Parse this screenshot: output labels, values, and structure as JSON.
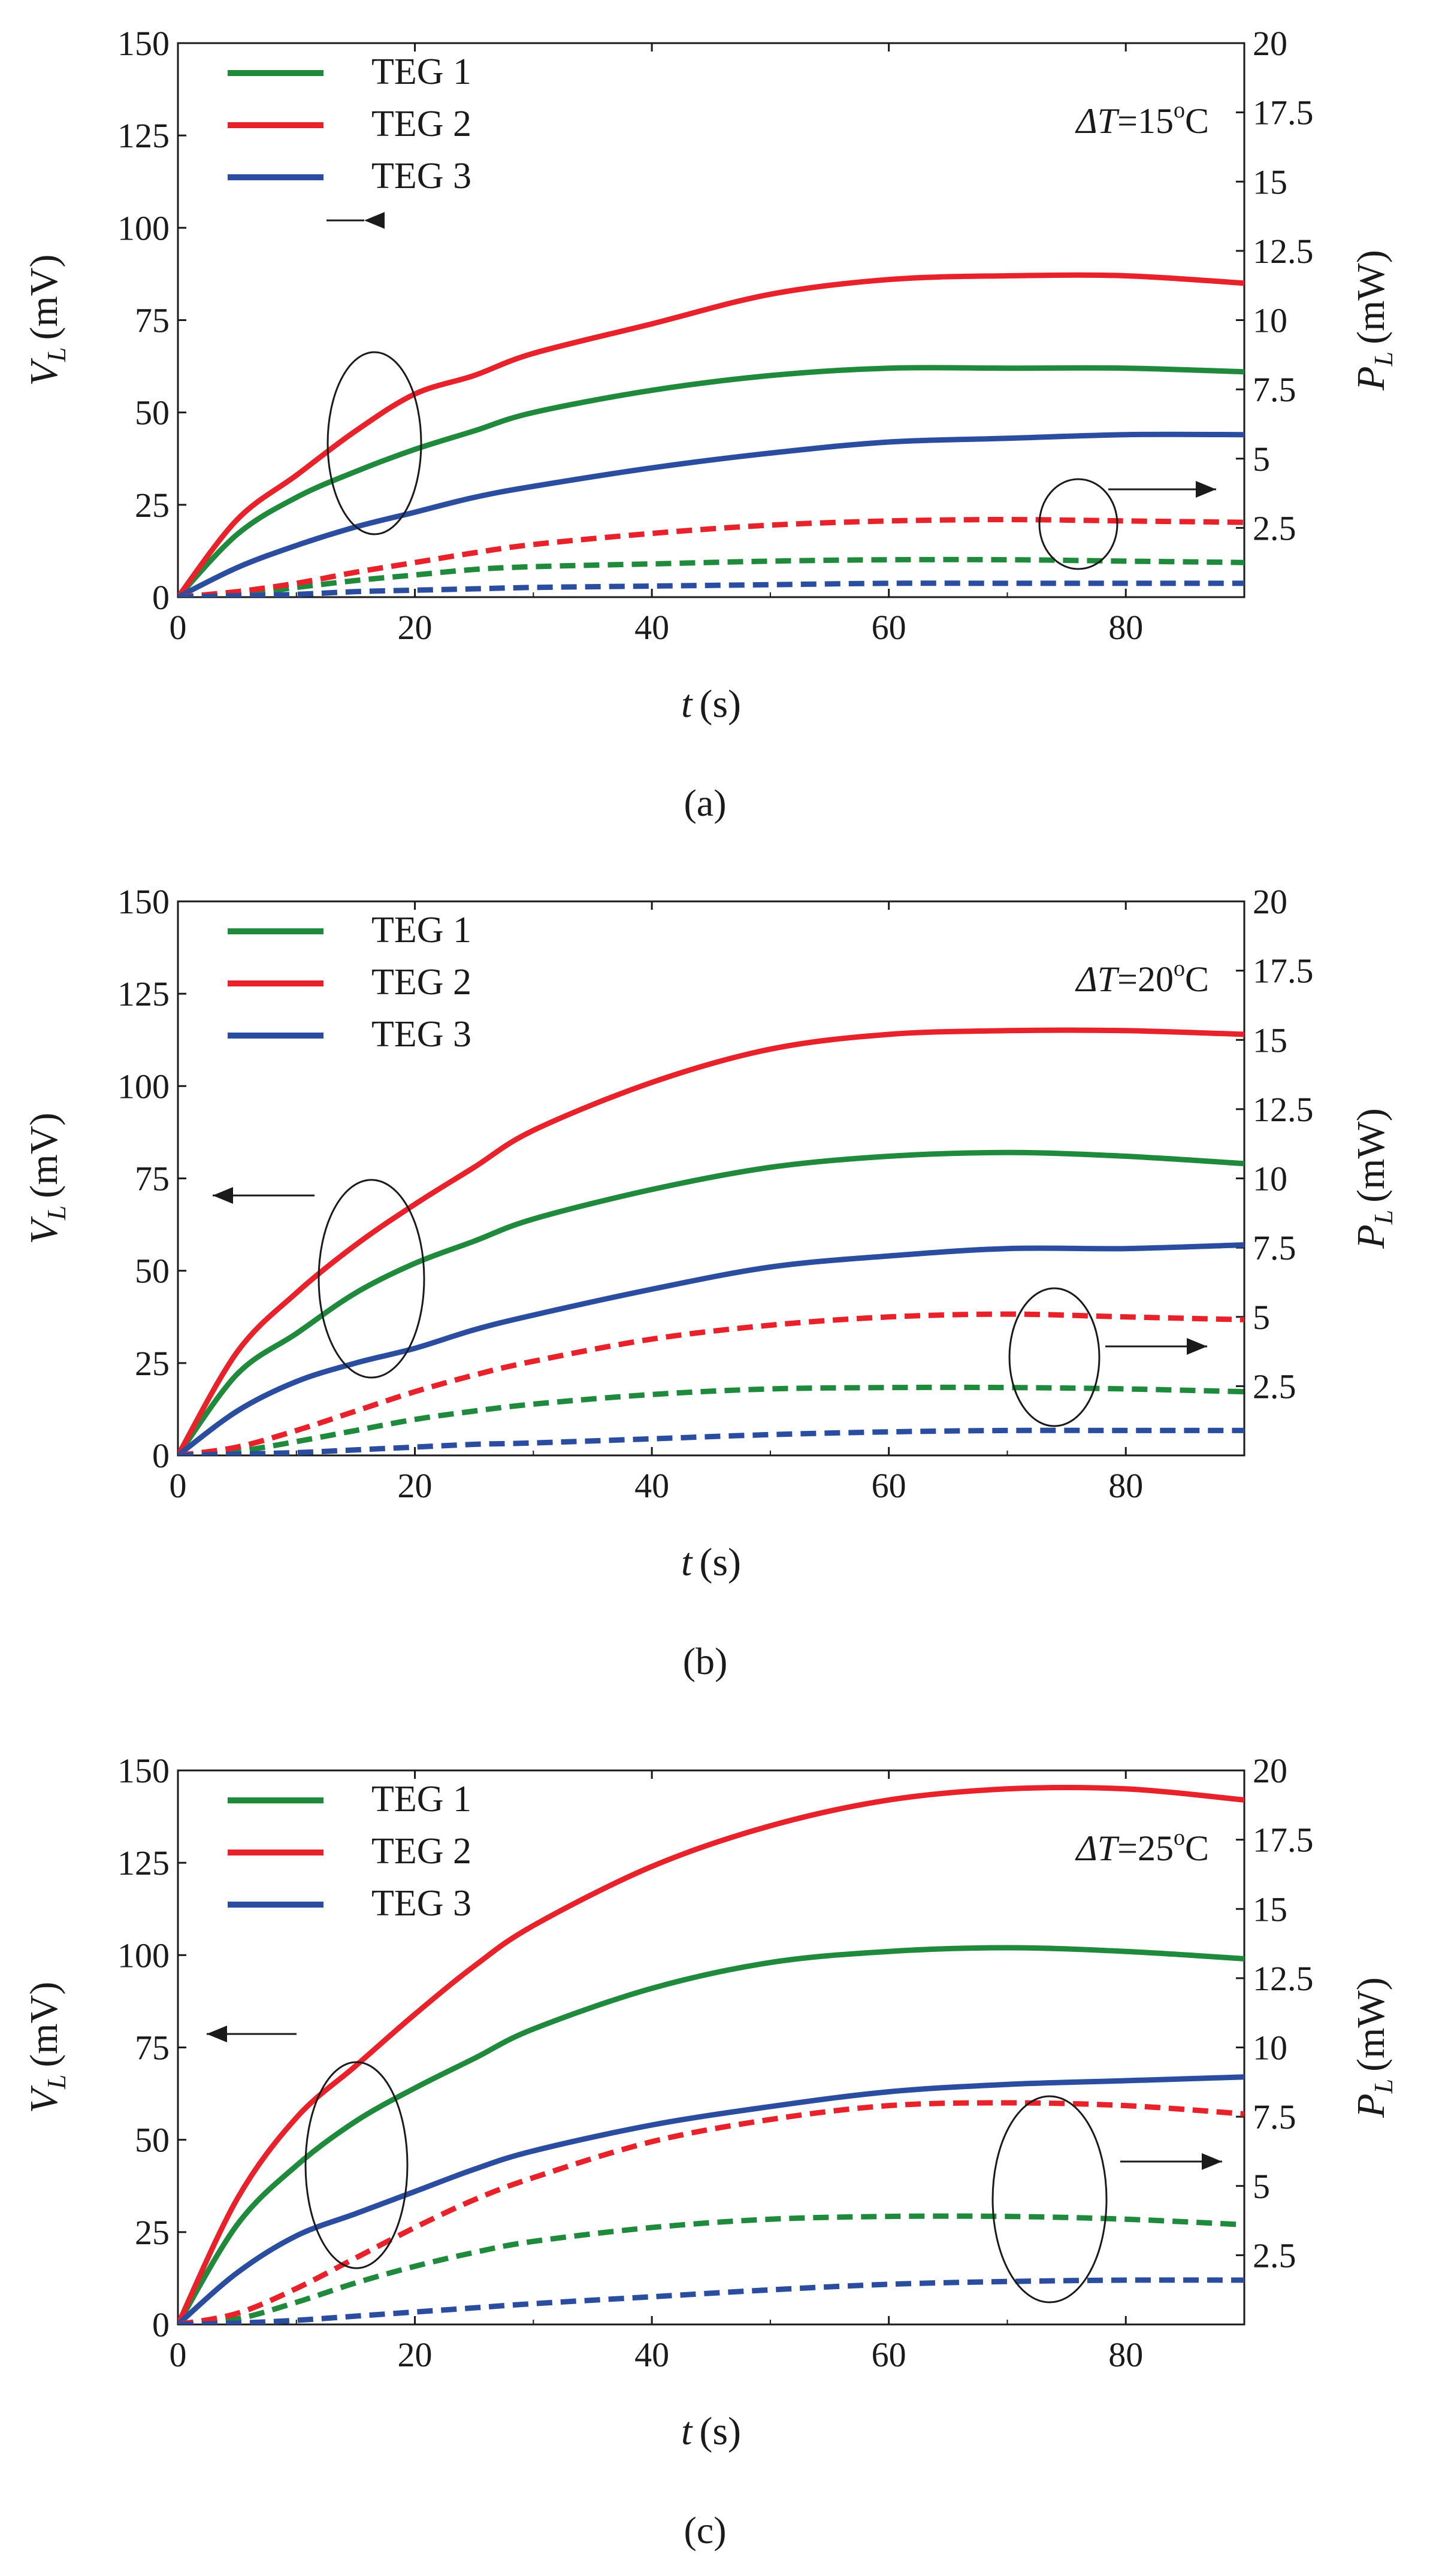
{
  "chart_data": [
    {
      "type": "line",
      "panel": "a",
      "caption": "(a)",
      "annotation": "ΔT=15°C",
      "annotation_parts": {
        "prefix": "ΔT",
        "value": "=15",
        "sup": "o",
        "unit": "C"
      },
      "xlabel": {
        "var": "t",
        "unit": "(s)"
      },
      "ylabel": {
        "var": "V",
        "sub": "L",
        "unit": "(mV)"
      },
      "y2label": {
        "var": "P",
        "sub": "L",
        "unit": "(mW)"
      },
      "xlim": [
        0,
        90
      ],
      "ylim": [
        0,
        150
      ],
      "y2lim": [
        0,
        20
      ],
      "xticks": [
        "0",
        "20",
        "40",
        "60",
        "80"
      ],
      "yticks": [
        "0",
        "25",
        "50",
        "75",
        "100",
        "125",
        "150"
      ],
      "y2ticks": [
        "2.5",
        "5",
        "7.5",
        "10",
        "12.5",
        "15",
        "17.5",
        "20"
      ],
      "legend": {
        "placement": "top-left",
        "entries": [
          "TEG 1",
          "TEG 2",
          "TEG 3"
        ]
      },
      "x": [
        0,
        5,
        10,
        15,
        20,
        25,
        30,
        40,
        50,
        60,
        70,
        80,
        90
      ],
      "series": [
        {
          "name": "TEG 1",
          "axis": "left",
          "style": "solid",
          "color": "#1f8a3c",
          "values": [
            0,
            17,
            27,
            34,
            40,
            45,
            50,
            56,
            60,
            62,
            62,
            62,
            61
          ]
        },
        {
          "name": "TEG 2",
          "axis": "left",
          "style": "solid",
          "color": "#e8222a",
          "values": [
            0,
            21,
            33,
            45,
            55,
            60,
            66,
            74,
            82,
            86,
            87,
            87,
            85
          ]
        },
        {
          "name": "TEG 3",
          "axis": "left",
          "style": "solid",
          "color": "#2b4da0",
          "values": [
            0,
            8,
            14,
            19,
            23,
            27,
            30,
            35,
            39,
            42,
            43,
            44,
            44
          ]
        },
        {
          "name": "TEG 1",
          "axis": "right",
          "style": "dashed",
          "color": "#1f8a3c",
          "values": [
            0,
            0.1,
            0.35,
            0.6,
            0.8,
            1.0,
            1.1,
            1.2,
            1.3,
            1.35,
            1.35,
            1.3,
            1.25
          ]
        },
        {
          "name": "TEG 2",
          "axis": "right",
          "style": "dashed",
          "color": "#e8222a",
          "values": [
            0,
            0.2,
            0.5,
            0.9,
            1.25,
            1.6,
            1.9,
            2.3,
            2.6,
            2.75,
            2.8,
            2.75,
            2.7
          ]
        },
        {
          "name": "TEG 3",
          "axis": "right",
          "style": "dashed",
          "color": "#2b4da0",
          "values": [
            0,
            0.05,
            0.1,
            0.2,
            0.25,
            0.3,
            0.35,
            0.4,
            0.45,
            0.5,
            0.5,
            0.5,
            0.5
          ]
        }
      ]
    },
    {
      "type": "line",
      "panel": "b",
      "caption": "(b)",
      "annotation": "ΔT=20°C",
      "annotation_parts": {
        "prefix": "ΔT",
        "value": "=20",
        "sup": "o",
        "unit": "C"
      },
      "xlabel": {
        "var": "t",
        "unit": "(s)"
      },
      "ylabel": {
        "var": "V",
        "sub": "L",
        "unit": "(mV)"
      },
      "y2label": {
        "var": "P",
        "sub": "L",
        "unit": "(mW)"
      },
      "xlim": [
        0,
        90
      ],
      "ylim": [
        0,
        150
      ],
      "y2lim": [
        0,
        20
      ],
      "xticks": [
        "0",
        "20",
        "40",
        "60",
        "80"
      ],
      "yticks": [
        "0",
        "25",
        "50",
        "75",
        "100",
        "125",
        "150"
      ],
      "y2ticks": [
        "2.5",
        "5",
        "7.5",
        "10",
        "12.5",
        "15",
        "17.5",
        "20"
      ],
      "legend": {
        "placement": "top-left",
        "entries": [
          "TEG 1",
          "TEG 2",
          "TEG 3"
        ]
      },
      "x": [
        0,
        5,
        10,
        15,
        20,
        25,
        30,
        40,
        50,
        60,
        70,
        80,
        90
      ],
      "series": [
        {
          "name": "TEG 1",
          "axis": "left",
          "style": "solid",
          "color": "#1f8a3c",
          "values": [
            0,
            22,
            33,
            44,
            52,
            58,
            64,
            72,
            78,
            81,
            82,
            81,
            79
          ]
        },
        {
          "name": "TEG 2",
          "axis": "left",
          "style": "solid",
          "color": "#e8222a",
          "values": [
            0,
            28,
            44,
            57,
            68,
            78,
            88,
            101,
            110,
            114,
            115,
            115,
            114
          ]
        },
        {
          "name": "TEG 3",
          "axis": "left",
          "style": "solid",
          "color": "#2b4da0",
          "values": [
            0,
            12,
            20,
            25,
            29,
            34,
            38,
            45,
            51,
            54,
            56,
            56,
            57
          ]
        },
        {
          "name": "TEG 1",
          "axis": "right",
          "style": "dashed",
          "color": "#1f8a3c",
          "values": [
            0,
            0.15,
            0.5,
            0.9,
            1.3,
            1.6,
            1.85,
            2.2,
            2.4,
            2.45,
            2.45,
            2.4,
            2.3
          ]
        },
        {
          "name": "TEG 2",
          "axis": "right",
          "style": "dashed",
          "color": "#e8222a",
          "values": [
            0,
            0.3,
            0.9,
            1.6,
            2.3,
            2.9,
            3.4,
            4.2,
            4.7,
            5.0,
            5.1,
            5.0,
            4.9
          ]
        },
        {
          "name": "TEG 3",
          "axis": "right",
          "style": "dashed",
          "color": "#2b4da0",
          "values": [
            0,
            0.05,
            0.1,
            0.2,
            0.3,
            0.4,
            0.45,
            0.6,
            0.75,
            0.85,
            0.9,
            0.9,
            0.9
          ]
        }
      ]
    },
    {
      "type": "line",
      "panel": "c",
      "caption": "(c)",
      "annotation": "ΔT=25°C",
      "annotation_parts": {
        "prefix": "ΔT",
        "value": "=25",
        "sup": "o",
        "unit": "C"
      },
      "xlabel": {
        "var": "t",
        "unit": "(s)"
      },
      "ylabel": {
        "var": "V",
        "sub": "L",
        "unit": "(mV)"
      },
      "y2label": {
        "var": "P",
        "sub": "L",
        "unit": "(mW)"
      },
      "xlim": [
        0,
        90
      ],
      "ylim": [
        0,
        150
      ],
      "y2lim": [
        0,
        20
      ],
      "xticks": [
        "0",
        "20",
        "40",
        "60",
        "80"
      ],
      "yticks": [
        "0",
        "25",
        "50",
        "75",
        "100",
        "125",
        "150"
      ],
      "y2ticks": [
        "2.5",
        "5",
        "7.5",
        "10",
        "12.5",
        "15",
        "17.5",
        "20"
      ],
      "legend": {
        "placement": "top-left",
        "entries": [
          "TEG 1",
          "TEG 2",
          "TEG 3"
        ]
      },
      "x": [
        0,
        5,
        10,
        15,
        20,
        25,
        30,
        40,
        50,
        60,
        70,
        80,
        90
      ],
      "series": [
        {
          "name": "TEG 1",
          "axis": "left",
          "style": "solid",
          "color": "#1f8a3c",
          "values": [
            0,
            27,
            43,
            55,
            64,
            72,
            80,
            91,
            98,
            101,
            102,
            101,
            99
          ]
        },
        {
          "name": "TEG 2",
          "axis": "left",
          "style": "solid",
          "color": "#e8222a",
          "values": [
            0,
            34,
            56,
            70,
            84,
            97,
            108,
            124,
            135,
            142,
            145,
            145,
            142
          ]
        },
        {
          "name": "TEG 3",
          "axis": "left",
          "style": "solid",
          "color": "#2b4da0",
          "values": [
            0,
            14,
            24,
            30,
            36,
            42,
            47,
            54,
            59,
            63,
            65,
            66,
            67
          ]
        },
        {
          "name": "TEG 1",
          "axis": "right",
          "style": "dashed",
          "color": "#1f8a3c",
          "values": [
            0,
            0.2,
            0.8,
            1.5,
            2.1,
            2.6,
            3.0,
            3.5,
            3.8,
            3.9,
            3.9,
            3.8,
            3.6
          ]
        },
        {
          "name": "TEG 2",
          "axis": "right",
          "style": "dashed",
          "color": "#e8222a",
          "values": [
            0,
            0.4,
            1.3,
            2.4,
            3.5,
            4.5,
            5.3,
            6.6,
            7.4,
            7.9,
            8.0,
            7.9,
            7.6
          ]
        },
        {
          "name": "TEG 3",
          "axis": "right",
          "style": "dashed",
          "color": "#2b4da0",
          "values": [
            0,
            0.05,
            0.15,
            0.3,
            0.45,
            0.6,
            0.75,
            1.0,
            1.25,
            1.45,
            1.55,
            1.6,
            1.6
          ]
        }
      ]
    }
  ]
}
